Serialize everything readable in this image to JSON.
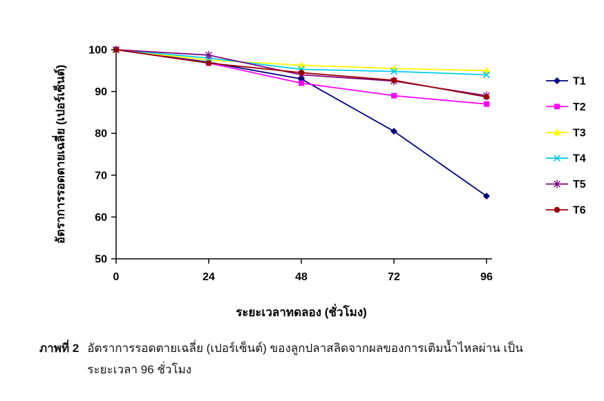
{
  "chart_data": {
    "type": "line",
    "x": [
      0,
      24,
      48,
      72,
      96
    ],
    "series": [
      {
        "name": "T1",
        "color": "#000080",
        "marker": "diamond",
        "values": [
          100,
          97.0,
          93.0,
          80.5,
          65.0
        ]
      },
      {
        "name": "T2",
        "color": "#FF00FF",
        "marker": "square",
        "values": [
          100,
          96.8,
          92.0,
          89.0,
          87.0
        ]
      },
      {
        "name": "T3",
        "color": "#FFFF00",
        "marker": "triangle",
        "values": [
          100,
          97.5,
          96.3,
          95.5,
          95.0
        ]
      },
      {
        "name": "T4",
        "color": "#00CCEE",
        "marker": "x",
        "values": [
          100,
          98.0,
          95.3,
          94.8,
          94.0
        ]
      },
      {
        "name": "T5",
        "color": "#800080",
        "marker": "asterisk",
        "values": [
          100,
          98.7,
          94.0,
          92.5,
          89.0
        ]
      },
      {
        "name": "T6",
        "color": "#990000",
        "marker": "circle",
        "values": [
          100,
          96.8,
          94.5,
          92.7,
          88.7
        ]
      }
    ],
    "title": "",
    "xlabel": "ระยะเวลาทดลอง (ชั่วโมง)",
    "ylabel": "อัตราการรอดตายเฉลี่ย (เปอร์เซ็นต์)",
    "ylim": [
      50,
      100
    ],
    "yticks": [
      50,
      60,
      70,
      80,
      90,
      100
    ],
    "xticks": [
      0,
      24,
      48,
      72,
      96
    ],
    "grid": false,
    "legend_position": "right",
    "legend_labels": [
      "T1",
      "T2",
      "T3",
      "T4",
      "T5",
      "T6"
    ]
  },
  "caption": {
    "label": "ภาพที่ 2",
    "text": "อัตราการรอดตายเฉลี่ย (เปอร์เซ็นต์) ของลูกปลาสลิดจากผลของการเติมน้ำไหลผ่าน เป็นระยะเวลา 96 ชั่วโมง"
  }
}
